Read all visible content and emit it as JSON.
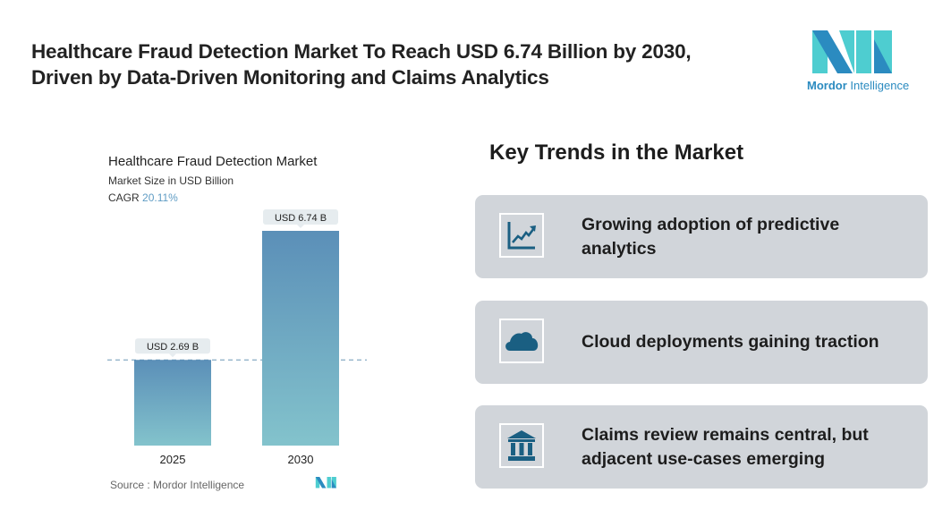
{
  "header": {
    "title_line1": "Healthcare Fraud Detection Market To Reach USD 6.74 Billion by 2030,",
    "title_line2": "Driven by Data-Driven Monitoring and Claims Analytics",
    "logo_text_bold": "Mordor",
    "logo_text_light": "Intelligence"
  },
  "chart_data": {
    "type": "bar",
    "title": "Healthcare Fraud Detection Market",
    "subtitle": "Market Size in USD Billion",
    "cagr_label": "CAGR",
    "cagr_value": "20.11%",
    "categories": [
      "2025",
      "2030"
    ],
    "values": [
      2.69,
      6.74
    ],
    "data_labels": [
      "USD 2.69 B",
      "USD 6.74 B"
    ],
    "reference_line": 2.69,
    "grid": false,
    "colors": {
      "bar_top": "#5b8fb8",
      "bar_bottom": "#83c3cc",
      "label_bg": "#e6ecef",
      "ref_line": "#6b97b5"
    },
    "source": "Source :  Mordor Intelligence"
  },
  "trends": {
    "heading": "Key Trends in the Market",
    "items": [
      {
        "icon": "line-chart-growth-icon",
        "text_line1": "Growing adoption of predictive",
        "text_line2": "analytics"
      },
      {
        "icon": "cloud-icon",
        "text_line1": "Cloud deployments gaining traction",
        "text_line2": ""
      },
      {
        "icon": "bank-building-icon",
        "text_line1": "Claims review remains central, but",
        "text_line2": "adjacent use-cases emerging"
      }
    ],
    "card_color": "#d1d5da",
    "icon_color": "#1a5f82"
  }
}
